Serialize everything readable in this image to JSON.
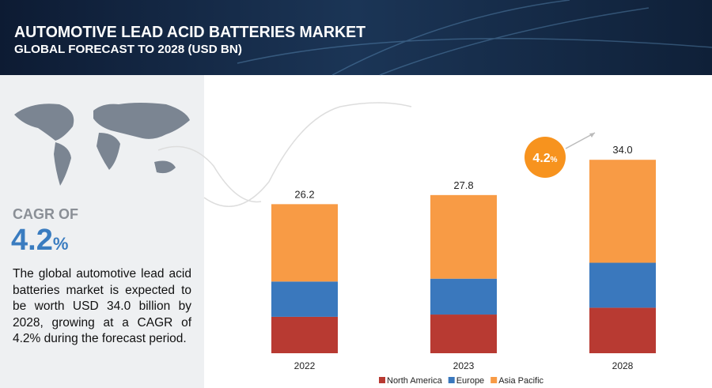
{
  "header": {
    "title": "AUTOMOTIVE LEAD ACID BATTERIES MARKET",
    "subtitle": "GLOBAL FORECAST TO 2028 (USD BN)"
  },
  "summary": {
    "cagr_caption": "CAGR OF",
    "cagr_value": "4.2",
    "cagr_unit": "%",
    "text": "The global automotive lead acid batteries market is expected to be worth USD 34.0 billion by 2028, growing at a CAGR of 4.2% during the forecast period."
  },
  "chart_data": {
    "type": "stacked_bar",
    "categories": [
      "2022",
      "2023",
      "2028"
    ],
    "series": [
      {
        "name": "North America",
        "color": "#b83a32",
        "values": [
          6.4,
          6.8,
          8.0
        ]
      },
      {
        "name": "Europe",
        "color": "#3a78bd",
        "values": [
          6.2,
          6.3,
          7.9
        ]
      },
      {
        "name": "Asia Pacific",
        "color": "#f89b45",
        "values": [
          13.6,
          14.7,
          18.1
        ]
      }
    ],
    "totals": [
      26.2,
      27.8,
      34
    ],
    "total_labels": [
      "26.2",
      "27.8",
      "34.0"
    ],
    "badge": {
      "value": "4.2",
      "unit": "%",
      "color": "#f7931e"
    }
  }
}
